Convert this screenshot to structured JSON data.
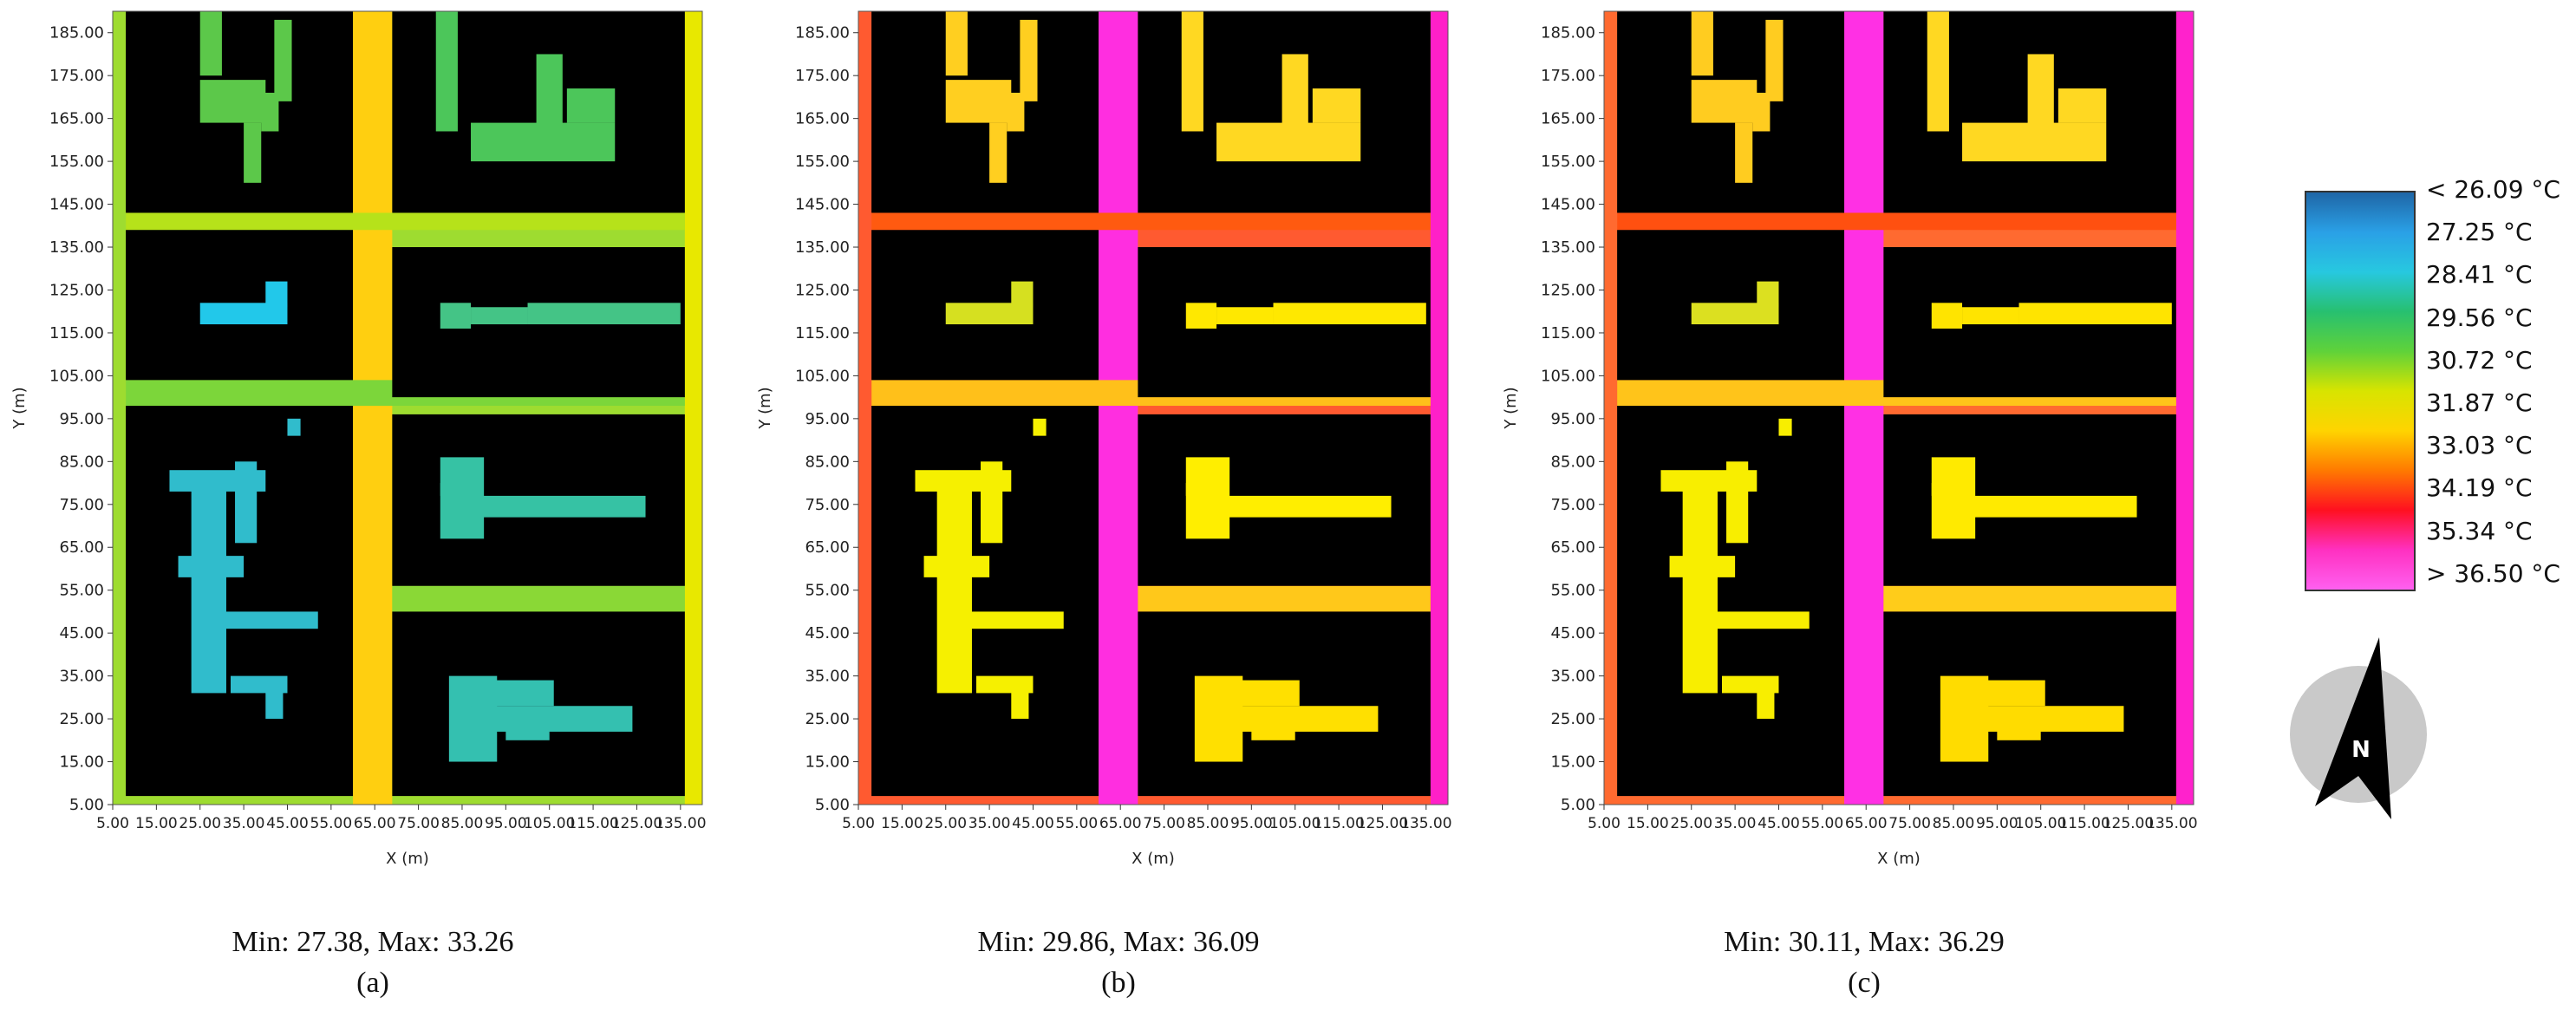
{
  "colorbar": {
    "labels": [
      "< 26.09 °C",
      "27.25  °C",
      "28.41  °C",
      "29.56  °C",
      "30.72  °C",
      "31.87  °C",
      "33.03  °C",
      "34.19  °C",
      "35.34  °C",
      "> 36.50 °C"
    ],
    "stops": [
      "#1f66a6",
      "#2aa0e6",
      "#27c8e0",
      "#27c070",
      "#5fd23a",
      "#d8e400",
      "#ffd400",
      "#ff7a00",
      "#ff1020",
      "#ff30c0",
      "#ff60f0"
    ]
  },
  "compass": {
    "label": "N"
  },
  "panels": [
    {
      "id": "a",
      "stats": "Min: 27.38, Max: 33.26",
      "label": "(a)"
    },
    {
      "id": "b",
      "stats": "Min: 29.86, Max: 36.09",
      "label": "(b)"
    },
    {
      "id": "c",
      "stats": "Min: 30.11, Max: 36.29",
      "label": "(c)"
    }
  ],
  "chart_data": {
    "type": "heatmap",
    "xlabel": "X (m)",
    "ylabel": "Y (m)",
    "x_ticks": [
      "5.00",
      "15.00",
      "25.00",
      "35.00",
      "45.00",
      "55.00",
      "65.00",
      "75.00",
      "85.00",
      "95.00",
      "105.00",
      "115.00",
      "125.00",
      "135.00"
    ],
    "y_ticks": [
      "5.00",
      "15.00",
      "25.00",
      "35.00",
      "45.00",
      "55.00",
      "65.00",
      "75.00",
      "85.00",
      "95.00",
      "105.00",
      "115.00",
      "125.00",
      "135.00",
      "145.00",
      "155.00",
      "165.00",
      "175.00",
      "185.00"
    ],
    "xlim": [
      5,
      140
    ],
    "ylim": [
      5,
      190
    ],
    "color_range_C": [
      26.09,
      36.5
    ],
    "panels": [
      {
        "id": "a",
        "min": 27.38,
        "max": 33.26,
        "road_ns_main": "#ffcf10",
        "road_ns_left": "#9edc30",
        "road_ns_right": "#e8e800",
        "road_ew": "#b6e21a",
        "road_ew_mid": "#7cd63a",
        "road_ew_low": "#8ad836",
        "veg_blocks": [
          "#5cc84a",
          "#4cc65a",
          "#22c8ea",
          "#44c486",
          "#30bccc",
          "#36c2a4",
          "#34c0b0"
        ]
      },
      {
        "id": "b",
        "min": 29.86,
        "max": 36.09,
        "road_ns_main": "#ff2ee0",
        "road_ns_left": "#ff5a30",
        "road_ns_right": "#ff20c8",
        "road_ew": "#ff5a10",
        "road_ew_mid": "#ffc01a",
        "road_ew_low": "#ffc81a",
        "veg_blocks": [
          "#ffcf20",
          "#ffd822",
          "#d6e020",
          "#ffe800",
          "#f6f000",
          "#ffee00",
          "#ffe000"
        ]
      },
      {
        "id": "c",
        "min": 30.11,
        "max": 36.29,
        "road_ns_main": "#ff30e4",
        "road_ns_left": "#ff6a30",
        "road_ns_right": "#ff22cc",
        "road_ew": "#ff5010",
        "road_ew_mid": "#ffc41a",
        "road_ew_low": "#ffcc1a",
        "veg_blocks": [
          "#ffcc20",
          "#ffd822",
          "#dce020",
          "#ffe400",
          "#f8ee00",
          "#ffea00",
          "#ffdc00"
        ]
      }
    ]
  }
}
